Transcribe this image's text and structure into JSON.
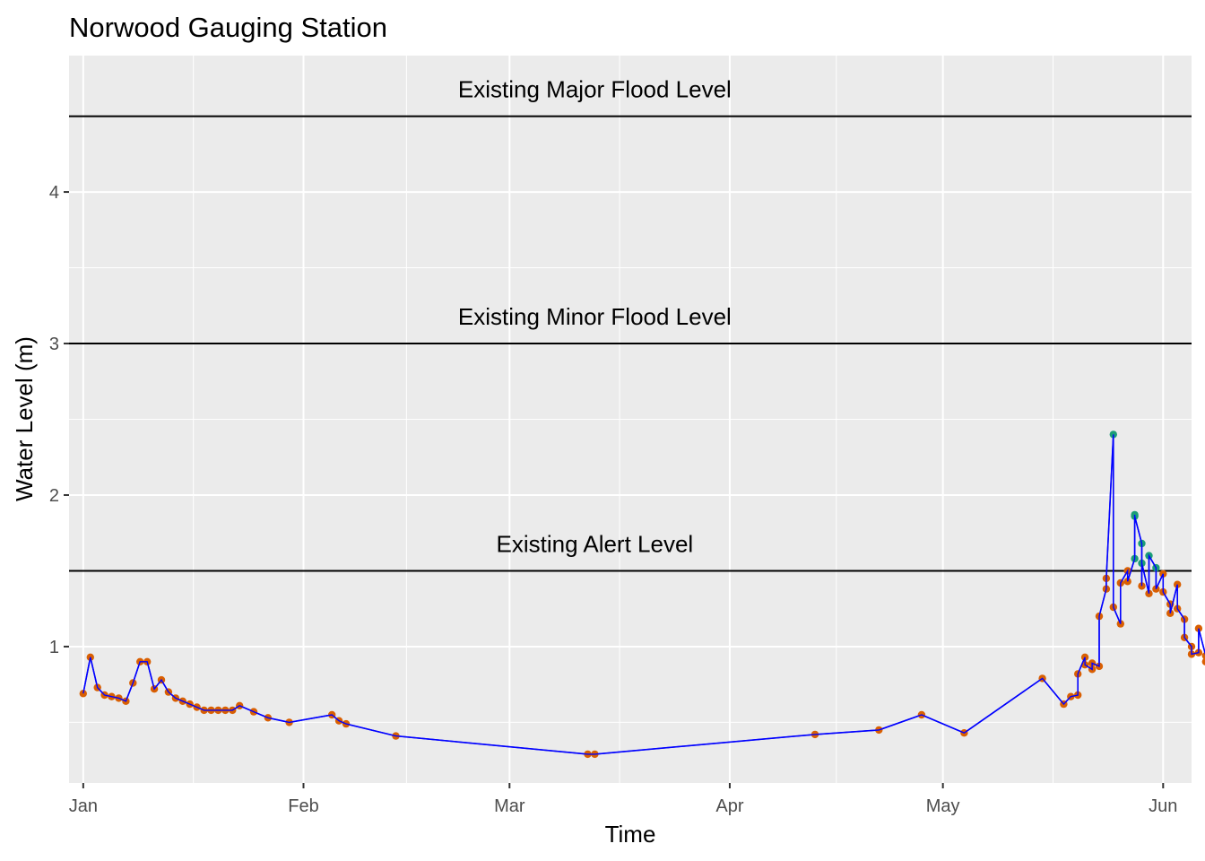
{
  "chart_data": {
    "type": "line",
    "title": "Norwood Gauging Station",
    "xlabel": "Time",
    "ylabel": "Water Level (m)",
    "x_type": "date",
    "xlim": [
      "2023-12-30",
      "2024-06-05"
    ],
    "ylim": [
      0.1,
      4.9
    ],
    "x_ticks": [
      {
        "date": "2024-01-01",
        "label": "Jan"
      },
      {
        "date": "2024-02-01",
        "label": "Feb"
      },
      {
        "date": "2024-03-01",
        "label": "Mar"
      },
      {
        "date": "2024-04-01",
        "label": "Apr"
      },
      {
        "date": "2024-05-01",
        "label": "May"
      },
      {
        "date": "2024-06-01",
        "label": "Jun"
      }
    ],
    "y_ticks": [
      {
        "value": 1,
        "label": "1"
      },
      {
        "value": 2,
        "label": "2"
      },
      {
        "value": 3,
        "label": "3"
      },
      {
        "value": 4,
        "label": "4"
      }
    ],
    "grid": true,
    "colors": {
      "panel": "#ebebeb",
      "grid": "#ffffff",
      "line": "#0000ff",
      "point_below_alert": "#d95f02",
      "point_above_alert": "#1b9e77",
      "reference_line": "#000000"
    },
    "reference_lines": [
      {
        "value": 4.5,
        "label": "Existing Major Flood Level"
      },
      {
        "value": 3.0,
        "label": "Existing Minor Flood Level"
      },
      {
        "value": 1.5,
        "label": "Existing Alert Level"
      }
    ],
    "reference_label_date": "2024-03-13",
    "series": [
      {
        "points": [
          [
            "2024-01-01",
            0.69
          ],
          [
            "2024-01-02",
            0.93
          ],
          [
            "2024-01-03",
            0.73
          ],
          [
            "2024-01-04",
            0.68
          ],
          [
            "2024-01-05",
            0.67
          ],
          [
            "2024-01-06",
            0.66
          ],
          [
            "2024-01-07",
            0.64
          ],
          [
            "2024-01-08",
            0.76
          ],
          [
            "2024-01-09",
            0.9
          ],
          [
            "2024-01-10",
            0.9
          ],
          [
            "2024-01-11",
            0.72
          ],
          [
            "2024-01-12",
            0.78
          ],
          [
            "2024-01-13",
            0.7
          ],
          [
            "2024-01-14",
            0.66
          ],
          [
            "2024-01-15",
            0.64
          ],
          [
            "2024-01-16",
            0.62
          ],
          [
            "2024-01-17",
            0.6
          ],
          [
            "2024-01-18",
            0.58
          ],
          [
            "2024-01-19",
            0.58
          ],
          [
            "2024-01-20",
            0.58
          ],
          [
            "2024-01-21",
            0.58
          ],
          [
            "2024-01-22",
            0.58
          ],
          [
            "2024-01-23",
            0.61
          ],
          [
            "2024-01-25",
            0.57
          ],
          [
            "2024-01-27",
            0.53
          ],
          [
            "2024-01-30",
            0.5
          ],
          [
            "2024-02-05",
            0.55
          ],
          [
            "2024-02-06",
            0.51
          ],
          [
            "2024-02-07",
            0.49
          ],
          [
            "2024-02-14",
            0.41
          ],
          [
            "2024-03-12",
            0.29
          ],
          [
            "2024-03-13",
            0.29
          ],
          [
            "2024-04-13",
            0.42
          ],
          [
            "2024-04-22",
            0.45
          ],
          [
            "2024-04-28",
            0.55
          ],
          [
            "2024-05-04",
            0.43
          ],
          [
            "2024-05-15",
            0.79
          ],
          [
            "2024-05-18",
            0.62
          ],
          [
            "2024-05-19",
            0.67
          ],
          [
            "2024-05-20",
            0.68
          ],
          [
            "2024-05-20",
            0.82
          ],
          [
            "2024-05-21",
            0.93
          ],
          [
            "2024-05-21",
            0.88
          ],
          [
            "2024-05-22",
            0.85
          ],
          [
            "2024-05-22",
            0.89
          ],
          [
            "2024-05-23",
            0.87
          ],
          [
            "2024-05-23",
            1.2
          ],
          [
            "2024-05-24",
            1.38
          ],
          [
            "2024-05-24",
            1.45
          ],
          [
            "2024-05-25",
            2.4
          ],
          [
            "2024-05-25",
            1.26
          ],
          [
            "2024-05-26",
            1.15
          ],
          [
            "2024-05-26",
            1.42
          ],
          [
            "2024-05-27",
            1.5
          ],
          [
            "2024-05-27",
            1.43
          ],
          [
            "2024-05-28",
            1.58
          ],
          [
            "2024-05-28",
            1.87
          ],
          [
            "2024-05-28",
            1.86
          ],
          [
            "2024-05-29",
            1.68
          ],
          [
            "2024-05-29",
            1.4
          ],
          [
            "2024-05-29",
            1.55
          ],
          [
            "2024-05-30",
            1.35
          ],
          [
            "2024-05-30",
            1.6
          ],
          [
            "2024-05-31",
            1.52
          ],
          [
            "2024-05-31",
            1.38
          ],
          [
            "2024-06-01",
            1.48
          ],
          [
            "2024-06-01",
            1.36
          ],
          [
            "2024-06-02",
            1.28
          ],
          [
            "2024-06-02",
            1.22
          ],
          [
            "2024-06-03",
            1.41
          ],
          [
            "2024-06-03",
            1.25
          ],
          [
            "2024-06-04",
            1.18
          ],
          [
            "2024-06-04",
            1.06
          ],
          [
            "2024-06-05",
            1.0
          ],
          [
            "2024-06-05",
            0.95
          ],
          [
            "2024-06-06",
            0.96
          ],
          [
            "2024-06-06",
            1.12
          ],
          [
            "2024-06-07",
            0.94
          ],
          [
            "2024-06-07",
            0.9
          ]
        ]
      }
    ]
  }
}
